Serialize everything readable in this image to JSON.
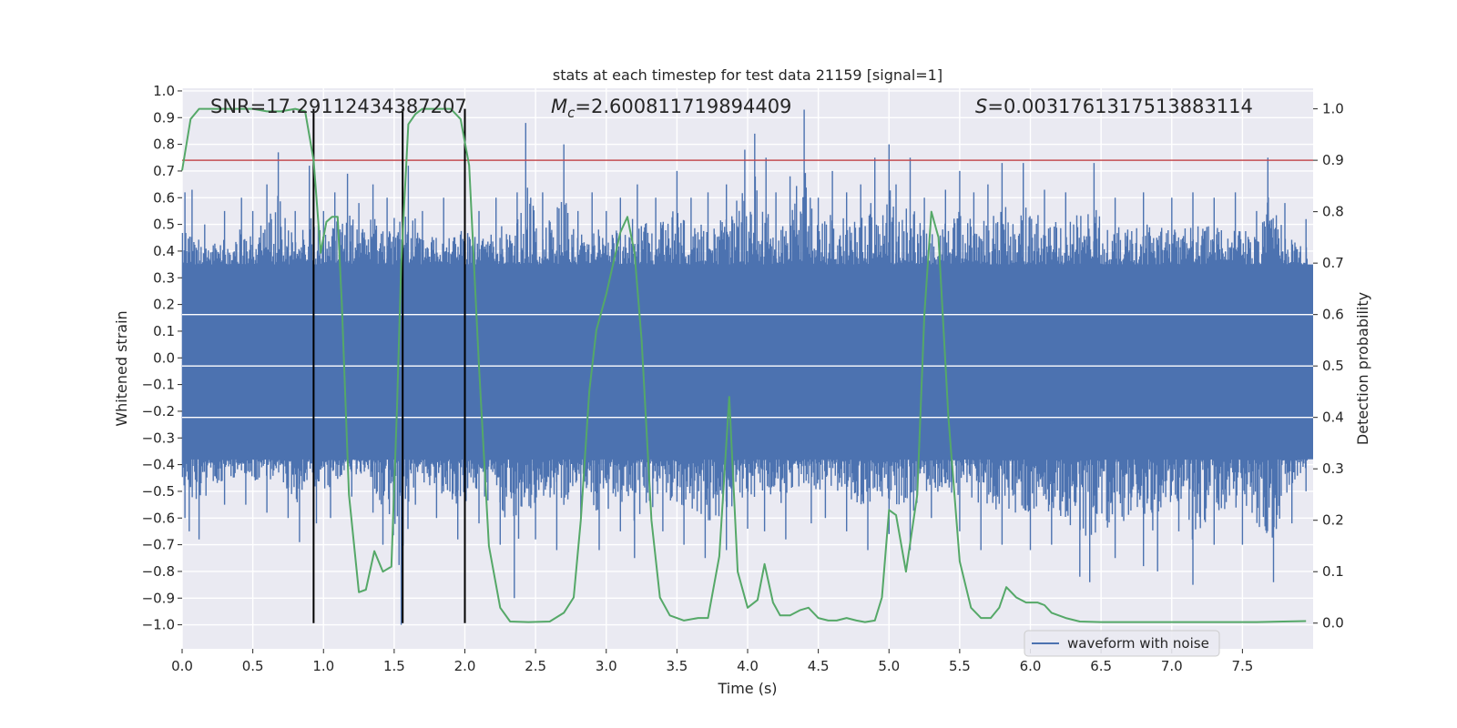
{
  "chart_data": {
    "type": "line",
    "title": "stats at each timestep for test data 21159 [signal=1]",
    "xlabel": "Time (s)",
    "ylabel_left": "Whitened strain",
    "ylabel_right": "Detection probability",
    "xlim": [
      0.0,
      8.0
    ],
    "ylim_left": [
      -1.09,
      1.01
    ],
    "ylim_right": [
      -0.05,
      1.04
    ],
    "x_ticks": [
      "0.0",
      "0.5",
      "1.0",
      "1.5",
      "2.0",
      "2.5",
      "3.0",
      "3.5",
      "4.0",
      "4.5",
      "5.0",
      "5.5",
      "6.0",
      "6.5",
      "7.0",
      "7.5"
    ],
    "x_tick_values": [
      0.0,
      0.5,
      1.0,
      1.5,
      2.0,
      2.5,
      3.0,
      3.5,
      4.0,
      4.5,
      5.0,
      5.5,
      6.0,
      6.5,
      7.0,
      7.5
    ],
    "y_left_ticks": [
      "1.0",
      "0.9",
      "0.8",
      "0.7",
      "0.6",
      "0.5",
      "0.4",
      "0.3",
      "0.2",
      "0.1",
      "0.0",
      "−0.1",
      "−0.2",
      "−0.3",
      "−0.4",
      "−0.5",
      "−0.6",
      "−0.7",
      "−0.8",
      "−0.9",
      "−1.0"
    ],
    "y_left_tick_values": [
      1.0,
      0.9,
      0.8,
      0.7,
      0.6,
      0.5,
      0.4,
      0.3,
      0.2,
      0.1,
      0.0,
      -0.1,
      -0.2,
      -0.3,
      -0.4,
      -0.5,
      -0.6,
      -0.7,
      -0.8,
      -0.9,
      -1.0
    ],
    "y_right_ticks": [
      "1.0",
      "0.9",
      "0.8",
      "0.7",
      "0.6",
      "0.5",
      "0.4",
      "0.3",
      "0.2",
      "0.1",
      "0.0"
    ],
    "y_right_tick_values": [
      1.0,
      0.9,
      0.8,
      0.7,
      0.6,
      0.5,
      0.4,
      0.3,
      0.2,
      0.1,
      0.0
    ],
    "grid": true,
    "stats": {
      "snr": "SNR=17.29112434387207",
      "mc_symbol": "M",
      "mc_sub": "c",
      "mc_value": "=2.600811719894409",
      "s_symbol": "S",
      "s_value": "=0.0031761317513883114"
    },
    "legend": {
      "label": "waveform with noise",
      "placement": "lower-right"
    },
    "threshold_right": 0.9,
    "vertical_markers": [
      0.93,
      1.56,
      2.0
    ],
    "waveform": {
      "name": "waveform with noise",
      "color": "#4c72b0",
      "band_low": -0.38,
      "band_high": 0.35,
      "peaks_pos": [
        [
          0.02,
          0.62
        ],
        [
          0.07,
          0.63
        ],
        [
          0.16,
          0.5
        ],
        [
          0.3,
          0.55
        ],
        [
          0.42,
          0.6
        ],
        [
          0.5,
          0.55
        ],
        [
          0.6,
          0.65
        ],
        [
          0.68,
          0.77
        ],
        [
          0.8,
          0.55
        ],
        [
          0.9,
          0.72
        ],
        [
          1.0,
          0.55
        ],
        [
          1.08,
          0.62
        ],
        [
          1.17,
          0.69
        ],
        [
          1.25,
          0.58
        ],
        [
          1.35,
          0.65
        ],
        [
          1.45,
          0.6
        ],
        [
          1.6,
          0.72
        ],
        [
          1.7,
          0.55
        ],
        [
          1.85,
          0.6
        ],
        [
          2.0,
          0.58
        ],
        [
          2.1,
          0.55
        ],
        [
          2.22,
          0.6
        ],
        [
          2.37,
          0.62
        ],
        [
          2.43,
          0.88
        ],
        [
          2.55,
          0.62
        ],
        [
          2.7,
          0.8
        ],
        [
          2.8,
          0.55
        ],
        [
          2.9,
          0.62
        ],
        [
          3.0,
          0.55
        ],
        [
          3.1,
          0.6
        ],
        [
          3.22,
          0.65
        ],
        [
          3.35,
          0.6
        ],
        [
          3.5,
          0.7
        ],
        [
          3.6,
          0.6
        ],
        [
          3.72,
          0.62
        ],
        [
          3.85,
          0.65
        ],
        [
          3.98,
          0.78
        ],
        [
          4.05,
          0.84
        ],
        [
          4.13,
          0.75
        ],
        [
          4.2,
          0.62
        ],
        [
          4.3,
          0.68
        ],
        [
          4.4,
          0.93
        ],
        [
          4.5,
          0.6
        ],
        [
          4.6,
          0.7
        ],
        [
          4.7,
          0.62
        ],
        [
          4.8,
          0.65
        ],
        [
          4.9,
          0.75
        ],
        [
          5.0,
          0.8
        ],
        [
          5.05,
          0.65
        ],
        [
          5.15,
          0.75
        ],
        [
          5.25,
          0.6
        ],
        [
          5.4,
          0.63
        ],
        [
          5.5,
          0.7
        ],
        [
          5.6,
          0.62
        ],
        [
          5.7,
          0.65
        ],
        [
          5.8,
          0.73
        ],
        [
          5.95,
          0.73
        ],
        [
          6.1,
          0.63
        ],
        [
          6.25,
          0.62
        ],
        [
          6.45,
          0.73
        ],
        [
          6.6,
          0.6
        ],
        [
          6.8,
          0.62
        ],
        [
          7.0,
          0.6
        ],
        [
          7.15,
          0.62
        ],
        [
          7.3,
          0.6
        ],
        [
          7.45,
          0.62
        ],
        [
          7.6,
          0.55
        ],
        [
          7.68,
          0.75
        ],
        [
          7.8,
          0.58
        ],
        [
          7.95,
          0.52
        ]
      ],
      "peaks_neg": [
        [
          0.02,
          -0.6
        ],
        [
          0.05,
          -0.65
        ],
        [
          0.12,
          -0.68
        ],
        [
          0.3,
          -0.55
        ],
        [
          0.45,
          -0.55
        ],
        [
          0.6,
          -0.58
        ],
        [
          0.75,
          -0.6
        ],
        [
          0.83,
          -0.69
        ],
        [
          0.95,
          -0.62
        ],
        [
          1.05,
          -0.6
        ],
        [
          1.2,
          -0.52
        ],
        [
          1.35,
          -0.58
        ],
        [
          1.42,
          -0.7
        ],
        [
          1.55,
          -1.0
        ],
        [
          1.65,
          -0.55
        ],
        [
          1.8,
          -0.6
        ],
        [
          1.95,
          -0.68
        ],
        [
          2.1,
          -0.62
        ],
        [
          2.25,
          -0.7
        ],
        [
          2.35,
          -0.9
        ],
        [
          2.5,
          -0.68
        ],
        [
          2.65,
          -0.72
        ],
        [
          2.82,
          -0.62
        ],
        [
          2.95,
          -0.72
        ],
        [
          3.1,
          -0.65
        ],
        [
          3.2,
          -0.75
        ],
        [
          3.4,
          -0.65
        ],
        [
          3.55,
          -0.7
        ],
        [
          3.7,
          -0.75
        ],
        [
          3.85,
          -0.72
        ],
        [
          4.0,
          -0.64
        ],
        [
          4.12,
          -0.65
        ],
        [
          4.27,
          -0.68
        ],
        [
          4.45,
          -0.62
        ],
        [
          4.55,
          -0.6
        ],
        [
          4.7,
          -0.65
        ],
        [
          4.85,
          -0.72
        ],
        [
          5.0,
          -0.66
        ],
        [
          5.15,
          -0.72
        ],
        [
          5.3,
          -0.6
        ],
        [
          5.5,
          -0.65
        ],
        [
          5.65,
          -0.72
        ],
        [
          5.8,
          -0.7
        ],
        [
          6.0,
          -0.72
        ],
        [
          6.15,
          -0.7
        ],
        [
          6.35,
          -0.82
        ],
        [
          6.42,
          -0.84
        ],
        [
          6.6,
          -0.75
        ],
        [
          6.8,
          -0.78
        ],
        [
          6.9,
          -0.8
        ],
        [
          7.05,
          -0.65
        ],
        [
          7.15,
          -0.85
        ],
        [
          7.3,
          -0.7
        ],
        [
          7.5,
          -0.7
        ],
        [
          7.72,
          -0.84
        ],
        [
          7.85,
          -0.62
        ],
        [
          7.95,
          -0.5
        ]
      ]
    },
    "probability": {
      "name": "detection probability",
      "color": "#55a868",
      "x": [
        0.0,
        0.06,
        0.12,
        0.2,
        0.3,
        0.4,
        0.5,
        0.6,
        0.7,
        0.8,
        0.87,
        0.93,
        0.98,
        1.02,
        1.06,
        1.1,
        1.13,
        1.18,
        1.25,
        1.3,
        1.36,
        1.42,
        1.48,
        1.52,
        1.55,
        1.6,
        1.65,
        1.7,
        1.75,
        1.82,
        1.9,
        1.97,
        2.03,
        2.1,
        2.17,
        2.25,
        2.32,
        2.45,
        2.6,
        2.7,
        2.77,
        2.82,
        2.88,
        2.93,
        3.0,
        3.05,
        3.1,
        3.15,
        3.2,
        3.25,
        3.32,
        3.38,
        3.45,
        3.55,
        3.65,
        3.72,
        3.8,
        3.87,
        3.93,
        4.0,
        4.07,
        4.12,
        4.18,
        4.23,
        4.3,
        4.37,
        4.43,
        4.5,
        4.57,
        4.63,
        4.7,
        4.77,
        4.83,
        4.9,
        4.95,
        5.0,
        5.05,
        5.12,
        5.2,
        5.25,
        5.3,
        5.35,
        5.42,
        5.5,
        5.58,
        5.65,
        5.72,
        5.78,
        5.83,
        5.9,
        5.97,
        6.05,
        6.1,
        6.15,
        6.25,
        6.35,
        6.5,
        6.8,
        7.2,
        7.6,
        7.95
      ],
      "y": [
        0.88,
        0.98,
        1.0,
        1.0,
        1.0,
        1.0,
        1.0,
        0.995,
        0.995,
        1.0,
        0.995,
        0.9,
        0.72,
        0.78,
        0.79,
        0.79,
        0.62,
        0.25,
        0.06,
        0.065,
        0.14,
        0.1,
        0.11,
        0.42,
        0.7,
        0.97,
        0.99,
        1.0,
        1.0,
        1.0,
        1.0,
        0.98,
        0.89,
        0.5,
        0.15,
        0.03,
        0.003,
        0.002,
        0.003,
        0.02,
        0.05,
        0.2,
        0.45,
        0.57,
        0.64,
        0.7,
        0.76,
        0.79,
        0.72,
        0.55,
        0.2,
        0.05,
        0.015,
        0.005,
        0.01,
        0.01,
        0.13,
        0.44,
        0.1,
        0.03,
        0.045,
        0.115,
        0.04,
        0.015,
        0.015,
        0.025,
        0.03,
        0.01,
        0.005,
        0.005,
        0.01,
        0.005,
        0.002,
        0.005,
        0.05,
        0.22,
        0.21,
        0.1,
        0.25,
        0.6,
        0.8,
        0.75,
        0.4,
        0.12,
        0.03,
        0.01,
        0.01,
        0.03,
        0.07,
        0.05,
        0.04,
        0.04,
        0.035,
        0.02,
        0.01,
        0.003,
        0.002,
        0.002,
        0.002,
        0.002,
        0.004
      ]
    }
  }
}
